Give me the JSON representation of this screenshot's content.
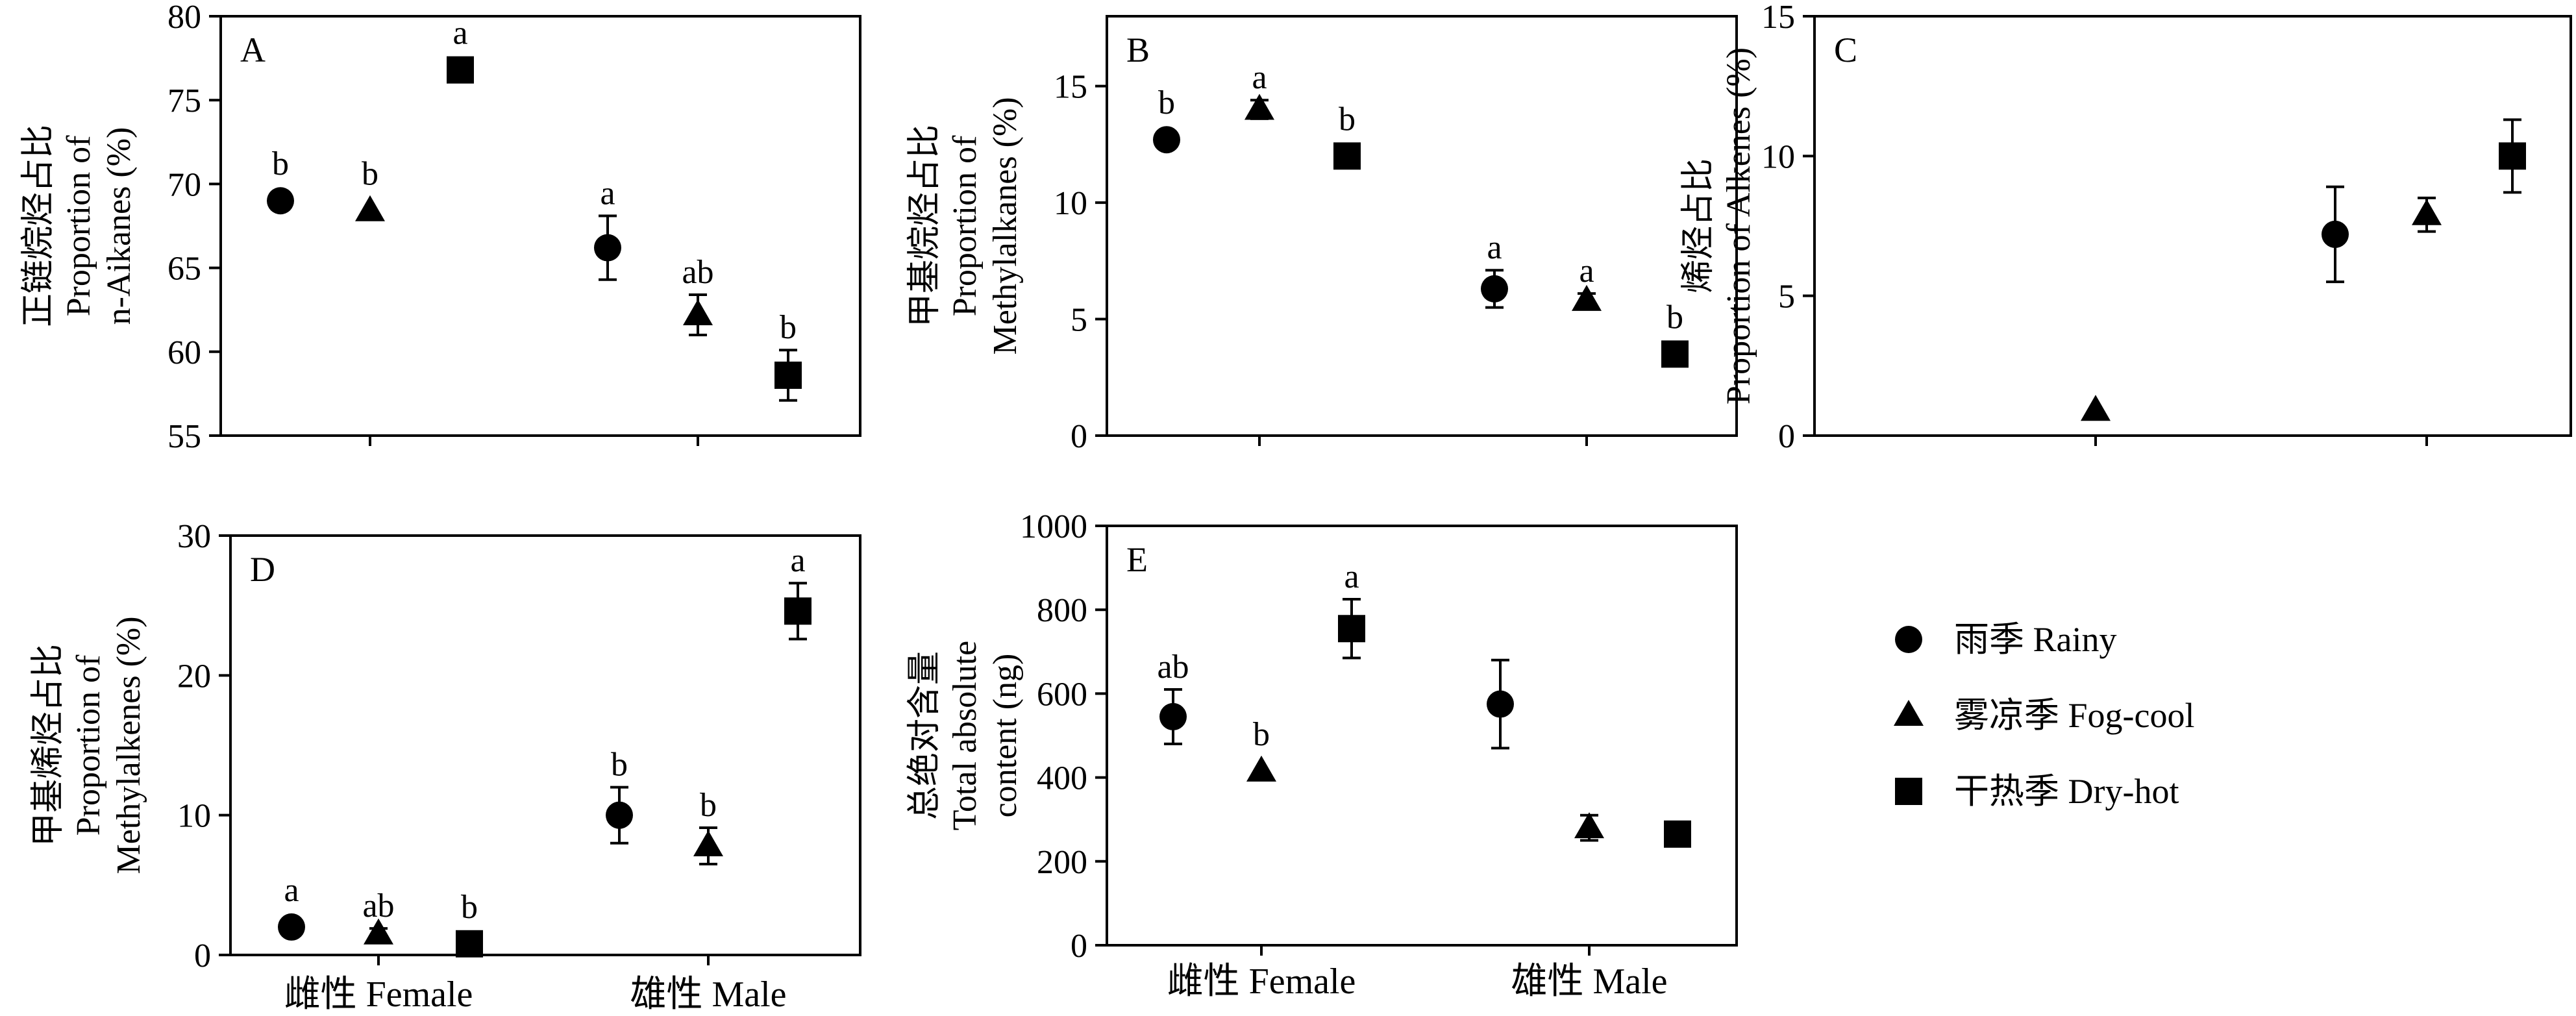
{
  "legend": {
    "items": [
      {
        "label": "雨季 Rainy",
        "marker": "circle"
      },
      {
        "label": "雾凉季 Fog-cool",
        "marker": "triangle"
      },
      {
        "label": "干热季 Dry-hot",
        "marker": "square"
      }
    ]
  },
  "x_categories": [
    "雌性 Female",
    "雄性 Male"
  ],
  "chart_data": [
    {
      "panel": "A",
      "type": "scatter",
      "ylabel": [
        "正链烷烃占比",
        "Proportion of",
        "n-Aikanes (%)"
      ],
      "ylim": [
        55,
        80
      ],
      "yticks": [
        55,
        60,
        65,
        70,
        75,
        80
      ],
      "series": [
        {
          "name": "雨季 Rainy",
          "marker": "circle",
          "points": [
            {
              "group": "雌性 Female",
              "y": 69.0,
              "err": null,
              "label": "b"
            },
            {
              "group": "雄性 Male",
              "y": 66.2,
              "err": 1.9,
              "label": "a"
            }
          ]
        },
        {
          "name": "雾凉季 Fog-cool",
          "marker": "triangle",
          "points": [
            {
              "group": "雌性 Female",
              "y": 68.4,
              "err": null,
              "label": "b"
            },
            {
              "group": "雄性 Male",
              "y": 62.2,
              "err": 1.2,
              "label": "ab"
            }
          ]
        },
        {
          "name": "干热季 Dry-hot",
          "marker": "square",
          "points": [
            {
              "group": "雌性 Female",
              "y": 76.8,
              "err": null,
              "label": "a"
            },
            {
              "group": "雄性 Male",
              "y": 58.6,
              "err": 1.5,
              "label": "b"
            }
          ]
        }
      ]
    },
    {
      "panel": "B",
      "type": "scatter",
      "ylabel": [
        "甲基烷烃占比",
        "Proportion of",
        "Methylalkanes (%)"
      ],
      "ylim": [
        0,
        18
      ],
      "yticks": [
        0,
        5,
        10,
        15
      ],
      "series": [
        {
          "name": "雨季 Rainy",
          "marker": "circle",
          "points": [
            {
              "group": "雌性 Female",
              "y": 12.7,
              "err": null,
              "label": "b"
            },
            {
              "group": "雄性 Male",
              "y": 6.3,
              "err": 0.8,
              "label": "a"
            }
          ]
        },
        {
          "name": "雾凉季 Fog-cool",
          "marker": "triangle",
          "points": [
            {
              "group": "雌性 Female",
              "y": 14.0,
              "err": 0.4,
              "label": "a"
            },
            {
              "group": "雄性 Male",
              "y": 5.8,
              "err": 0.3,
              "label": "a"
            }
          ]
        },
        {
          "name": "干热季 Dry-hot",
          "marker": "square",
          "points": [
            {
              "group": "雌性 Female",
              "y": 12.0,
              "err": null,
              "label": "b"
            },
            {
              "group": "雄性 Male",
              "y": 3.5,
              "err": null,
              "label": "b"
            }
          ]
        }
      ]
    },
    {
      "panel": "C",
      "type": "scatter",
      "ylabel": [
        "烯烃占比",
        "Proportion of Alkenes (%)"
      ],
      "ylim": [
        0,
        15
      ],
      "yticks": [
        0,
        5,
        10,
        15
      ],
      "series": [
        {
          "name": "雨季 Rainy",
          "marker": "circle",
          "points": [
            {
              "group": "雄性 Male",
              "y": 7.2,
              "err": 1.7,
              "label": ""
            }
          ]
        },
        {
          "name": "雾凉季 Fog-cool",
          "marker": "triangle",
          "points": [
            {
              "group": "雌性 Female",
              "y": 0.9,
              "err": null,
              "label": ""
            },
            {
              "group": "雄性 Male",
              "y": 7.9,
              "err": 0.6,
              "label": ""
            }
          ]
        },
        {
          "name": "干热季 Dry-hot",
          "marker": "square",
          "points": [
            {
              "group": "雄性 Male",
              "y": 10.0,
              "err": 1.3,
              "label": ""
            }
          ]
        }
      ]
    },
    {
      "panel": "D",
      "type": "scatter",
      "ylabel": [
        "甲基烯烃占比",
        "Proportion of",
        "Methylalkenes (%)"
      ],
      "ylim": [
        0,
        30
      ],
      "yticks": [
        0,
        10,
        20,
        30
      ],
      "series": [
        {
          "name": "雨季 Rainy",
          "marker": "circle",
          "points": [
            {
              "group": "雌性 Female",
              "y": 2.0,
              "err": null,
              "label": "a"
            },
            {
              "group": "雄性 Male",
              "y": 10.0,
              "err": 2.0,
              "label": "b"
            }
          ]
        },
        {
          "name": "雾凉季 Fog-cool",
          "marker": "triangle",
          "points": [
            {
              "group": "雌性 Female",
              "y": 1.5,
              "err": 0.4,
              "label": "ab"
            },
            {
              "group": "雄性 Male",
              "y": 7.8,
              "err": 1.3,
              "label": "b"
            }
          ]
        },
        {
          "name": "干热季 Dry-hot",
          "marker": "square",
          "points": [
            {
              "group": "雌性 Female",
              "y": 0.8,
              "err": null,
              "label": "b"
            },
            {
              "group": "雄性 Male",
              "y": 24.6,
              "err": 2.0,
              "label": "a"
            }
          ]
        }
      ]
    },
    {
      "panel": "E",
      "type": "scatter",
      "ylabel": [
        "总绝对含量",
        "Total absolute",
        "content (ng)"
      ],
      "ylim": [
        0,
        1000
      ],
      "yticks": [
        0,
        200,
        400,
        600,
        800,
        1000
      ],
      "series": [
        {
          "name": "雨季 Rainy",
          "marker": "circle",
          "points": [
            {
              "group": "雌性 Female",
              "y": 545,
              "err": 65,
              "label": "ab"
            },
            {
              "group": "雄性 Male",
              "y": 575,
              "err": 105,
              "label": ""
            }
          ]
        },
        {
          "name": "雾凉季 Fog-cool",
          "marker": "triangle",
          "points": [
            {
              "group": "雌性 Female",
              "y": 415,
              "err": null,
              "label": "b"
            },
            {
              "group": "雄性 Male",
              "y": 280,
              "err": 30,
              "label": ""
            }
          ]
        },
        {
          "name": "干热季 Dry-hot",
          "marker": "square",
          "points": [
            {
              "group": "雌性 Female",
              "y": 755,
              "err": 70,
              "label": "a"
            },
            {
              "group": "雄性 Male",
              "y": 265,
              "err": null,
              "label": ""
            }
          ]
        }
      ]
    }
  ]
}
